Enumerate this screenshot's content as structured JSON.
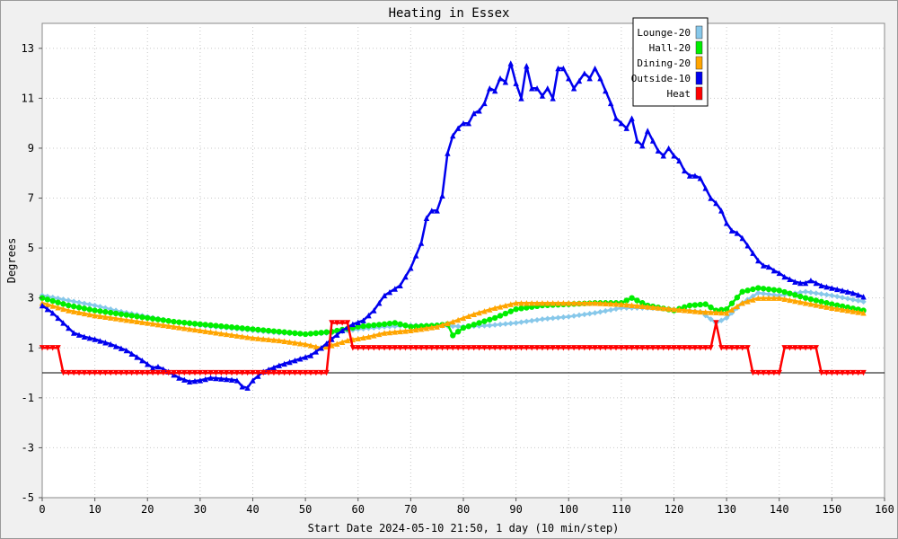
{
  "chart_data": {
    "type": "line",
    "title": "Heating in Essex",
    "xlabel": "Start Date 2024-05-10 21:50, 1 day (10 min/step)",
    "ylabel": "Degrees",
    "xlim": [
      0,
      160
    ],
    "ylim": [
      -5,
      14
    ],
    "xticks": [
      0,
      10,
      20,
      30,
      40,
      50,
      60,
      70,
      80,
      90,
      100,
      110,
      120,
      130,
      140,
      150,
      160
    ],
    "yticks": [
      -5,
      -3,
      -1,
      1,
      3,
      5,
      7,
      9,
      11,
      13
    ],
    "grid": true,
    "legend_position": "top-right",
    "series": [
      {
        "name": "Lounge-20",
        "color": "#87c8ea",
        "marker": "diamond",
        "points": [
          [
            0,
            3.1
          ],
          [
            5,
            2.9
          ],
          [
            10,
            2.7
          ],
          [
            15,
            2.45
          ],
          [
            20,
            2.25
          ],
          [
            25,
            2.05
          ],
          [
            30,
            1.9
          ],
          [
            35,
            1.8
          ],
          [
            40,
            1.7
          ],
          [
            45,
            1.6
          ],
          [
            50,
            1.55
          ],
          [
            55,
            1.6
          ],
          [
            60,
            1.75
          ],
          [
            65,
            1.85
          ],
          [
            70,
            1.9
          ],
          [
            75,
            1.9
          ],
          [
            80,
            1.85
          ],
          [
            85,
            1.9
          ],
          [
            90,
            2.0
          ],
          [
            95,
            2.15
          ],
          [
            100,
            2.25
          ],
          [
            105,
            2.4
          ],
          [
            110,
            2.6
          ],
          [
            115,
            2.6
          ],
          [
            120,
            2.55
          ],
          [
            125,
            2.45
          ],
          [
            128,
            2.0
          ],
          [
            130,
            2.2
          ],
          [
            133,
            2.8
          ],
          [
            136,
            3.2
          ],
          [
            140,
            3.1
          ],
          [
            145,
            3.25
          ],
          [
            150,
            3.1
          ],
          [
            156,
            2.85
          ]
        ]
      },
      {
        "name": "Hall-20",
        "color": "#00ee00",
        "marker": "circle",
        "points": [
          [
            0,
            3.0
          ],
          [
            5,
            2.7
          ],
          [
            10,
            2.5
          ],
          [
            15,
            2.35
          ],
          [
            20,
            2.2
          ],
          [
            25,
            2.05
          ],
          [
            30,
            1.95
          ],
          [
            35,
            1.85
          ],
          [
            40,
            1.75
          ],
          [
            45,
            1.65
          ],
          [
            50,
            1.55
          ],
          [
            55,
            1.65
          ],
          [
            60,
            1.85
          ],
          [
            65,
            1.95
          ],
          [
            67,
            2.0
          ],
          [
            70,
            1.85
          ],
          [
            75,
            1.9
          ],
          [
            77,
            1.95
          ],
          [
            78,
            1.5
          ],
          [
            80,
            1.8
          ],
          [
            83,
            2.0
          ],
          [
            86,
            2.2
          ],
          [
            90,
            2.55
          ],
          [
            95,
            2.7
          ],
          [
            100,
            2.75
          ],
          [
            105,
            2.8
          ],
          [
            110,
            2.8
          ],
          [
            112,
            3.0
          ],
          [
            115,
            2.7
          ],
          [
            120,
            2.5
          ],
          [
            123,
            2.7
          ],
          [
            126,
            2.75
          ],
          [
            128,
            2.5
          ],
          [
            130,
            2.55
          ],
          [
            133,
            3.25
          ],
          [
            136,
            3.4
          ],
          [
            140,
            3.3
          ],
          [
            145,
            3.0
          ],
          [
            150,
            2.75
          ],
          [
            156,
            2.5
          ]
        ]
      },
      {
        "name": "Dining-20",
        "color": "#ffa500",
        "marker": "triangle",
        "points": [
          [
            0,
            2.8
          ],
          [
            5,
            2.5
          ],
          [
            10,
            2.3
          ],
          [
            15,
            2.15
          ],
          [
            20,
            2.0
          ],
          [
            25,
            1.85
          ],
          [
            30,
            1.7
          ],
          [
            35,
            1.55
          ],
          [
            40,
            1.4
          ],
          [
            45,
            1.3
          ],
          [
            50,
            1.15
          ],
          [
            53,
            1.0
          ],
          [
            55,
            1.1
          ],
          [
            58,
            1.3
          ],
          [
            62,
            1.45
          ],
          [
            65,
            1.6
          ],
          [
            70,
            1.7
          ],
          [
            75,
            1.85
          ],
          [
            78,
            2.05
          ],
          [
            82,
            2.35
          ],
          [
            86,
            2.6
          ],
          [
            90,
            2.8
          ],
          [
            95,
            2.8
          ],
          [
            100,
            2.8
          ],
          [
            105,
            2.8
          ],
          [
            110,
            2.75
          ],
          [
            115,
            2.65
          ],
          [
            120,
            2.55
          ],
          [
            125,
            2.45
          ],
          [
            130,
            2.4
          ],
          [
            133,
            2.8
          ],
          [
            136,
            3.0
          ],
          [
            140,
            3.0
          ],
          [
            145,
            2.8
          ],
          [
            150,
            2.6
          ],
          [
            156,
            2.4
          ]
        ]
      },
      {
        "name": "Outside-10",
        "color": "#0000ee",
        "marker": "triangle",
        "points": [
          [
            0,
            2.7
          ],
          [
            2,
            2.4
          ],
          [
            4,
            2.0
          ],
          [
            6,
            1.6
          ],
          [
            8,
            1.45
          ],
          [
            10,
            1.35
          ],
          [
            13,
            1.15
          ],
          [
            16,
            0.9
          ],
          [
            19,
            0.5
          ],
          [
            21,
            0.2
          ],
          [
            22,
            0.25
          ],
          [
            24,
            0.05
          ],
          [
            26,
            -0.2
          ],
          [
            28,
            -0.35
          ],
          [
            30,
            -0.3
          ],
          [
            32,
            -0.2
          ],
          [
            35,
            -0.25
          ],
          [
            37,
            -0.3
          ],
          [
            38,
            -0.55
          ],
          [
            39,
            -0.6
          ],
          [
            40,
            -0.3
          ],
          [
            42,
            0.05
          ],
          [
            45,
            0.3
          ],
          [
            48,
            0.5
          ],
          [
            51,
            0.7
          ],
          [
            53,
            1.0
          ],
          [
            55,
            1.35
          ],
          [
            57,
            1.7
          ],
          [
            59,
            1.95
          ],
          [
            61,
            2.1
          ],
          [
            63,
            2.5
          ],
          [
            65,
            3.1
          ],
          [
            68,
            3.5
          ],
          [
            70,
            4.2
          ],
          [
            72,
            5.2
          ],
          [
            73,
            6.2
          ],
          [
            74,
            6.5
          ],
          [
            75,
            6.5
          ],
          [
            76,
            7.1
          ],
          [
            77,
            8.8
          ],
          [
            78,
            9.5
          ],
          [
            79,
            9.8
          ],
          [
            80,
            10.0
          ],
          [
            81,
            10.0
          ],
          [
            82,
            10.4
          ],
          [
            83,
            10.5
          ],
          [
            84,
            10.8
          ],
          [
            85,
            11.4
          ],
          [
            86,
            11.3
          ],
          [
            87,
            11.8
          ],
          [
            88,
            11.65
          ],
          [
            89,
            12.4
          ],
          [
            90,
            11.6
          ],
          [
            91,
            11.0
          ],
          [
            92,
            12.3
          ],
          [
            93,
            11.4
          ],
          [
            94,
            11.4
          ],
          [
            95,
            11.1
          ],
          [
            96,
            11.4
          ],
          [
            97,
            11.0
          ],
          [
            98,
            12.2
          ],
          [
            99,
            12.2
          ],
          [
            100,
            11.8
          ],
          [
            101,
            11.4
          ],
          [
            102,
            11.7
          ],
          [
            103,
            12.0
          ],
          [
            104,
            11.8
          ],
          [
            105,
            12.2
          ],
          [
            106,
            11.8
          ],
          [
            107,
            11.3
          ],
          [
            108,
            10.8
          ],
          [
            109,
            10.2
          ],
          [
            110,
            10.0
          ],
          [
            111,
            9.8
          ],
          [
            112,
            10.2
          ],
          [
            113,
            9.3
          ],
          [
            114,
            9.1
          ],
          [
            115,
            9.7
          ],
          [
            116,
            9.3
          ],
          [
            117,
            8.9
          ],
          [
            118,
            8.7
          ],
          [
            119,
            9.0
          ],
          [
            120,
            8.7
          ],
          [
            121,
            8.5
          ],
          [
            122,
            8.1
          ],
          [
            123,
            7.9
          ],
          [
            124,
            7.9
          ],
          [
            125,
            7.8
          ],
          [
            126,
            7.4
          ],
          [
            127,
            7.0
          ],
          [
            128,
            6.8
          ],
          [
            129,
            6.5
          ],
          [
            130,
            6.0
          ],
          [
            131,
            5.7
          ],
          [
            132,
            5.6
          ],
          [
            133,
            5.4
          ],
          [
            134,
            5.1
          ],
          [
            135,
            4.8
          ],
          [
            136,
            4.5
          ],
          [
            137,
            4.3
          ],
          [
            138,
            4.25
          ],
          [
            139,
            4.1
          ],
          [
            140,
            4.0
          ],
          [
            141,
            3.85
          ],
          [
            142,
            3.75
          ],
          [
            143,
            3.65
          ],
          [
            144,
            3.6
          ],
          [
            145,
            3.6
          ],
          [
            146,
            3.7
          ],
          [
            147,
            3.6
          ],
          [
            148,
            3.5
          ],
          [
            149,
            3.45
          ],
          [
            150,
            3.4
          ],
          [
            152,
            3.3
          ],
          [
            154,
            3.2
          ],
          [
            156,
            3.05
          ]
        ]
      },
      {
        "name": "Heat",
        "color": "#ff0000",
        "marker": "triangle-down",
        "points": [
          [
            0,
            1
          ],
          [
            3,
            1
          ],
          [
            4,
            0
          ],
          [
            54,
            0
          ],
          [
            55,
            2
          ],
          [
            58,
            2
          ],
          [
            59,
            1
          ],
          [
            127,
            1
          ],
          [
            128,
            2
          ],
          [
            129,
            1
          ],
          [
            134,
            1
          ],
          [
            135,
            0
          ],
          [
            140,
            0
          ],
          [
            141,
            1
          ],
          [
            147,
            1
          ],
          [
            148,
            0
          ],
          [
            156,
            0
          ]
        ]
      }
    ]
  }
}
